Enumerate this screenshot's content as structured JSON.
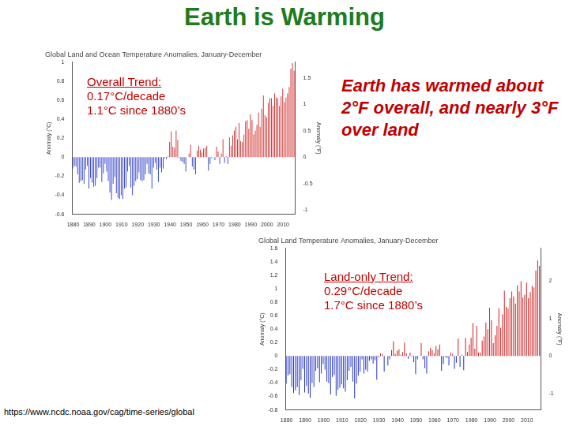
{
  "title": "Earth is Warming",
  "annotation": "Earth has warmed about 2°F overall, and nearly 3°F over land",
  "source": "https://www.ncdc.noaa.gov/cag/time-series/global",
  "chart_data": [
    {
      "type": "bar",
      "title": "Global Land and Ocean Temperature Anomalies, January-December",
      "ylabel": "Anomaly (°C)",
      "y2label": "Anomaly (°F)",
      "annotations": [
        "Overall Trend:",
        "0.17°C/decade",
        "1.1°C since 1880’s"
      ],
      "categories": [
        "1880",
        null,
        null,
        null,
        null,
        null,
        null,
        null,
        null,
        null,
        "1890",
        null,
        null,
        null,
        null,
        null,
        null,
        null,
        null,
        null,
        "1900",
        null,
        null,
        null,
        null,
        null,
        null,
        null,
        null,
        null,
        "1910",
        null,
        null,
        null,
        null,
        null,
        null,
        null,
        null,
        null,
        "1920",
        null,
        null,
        null,
        null,
        null,
        null,
        null,
        null,
        null,
        "1930",
        null,
        null,
        null,
        null,
        null,
        null,
        null,
        null,
        null,
        "1940",
        null,
        null,
        null,
        null,
        null,
        null,
        null,
        null,
        null,
        "1950",
        null,
        null,
        null,
        null,
        null,
        null,
        null,
        null,
        null,
        "1960",
        null,
        null,
        null,
        null,
        null,
        null,
        null,
        null,
        null,
        "1970",
        null,
        null,
        null,
        null,
        null,
        null,
        null,
        null,
        null,
        "1980",
        null,
        null,
        null,
        null,
        null,
        null,
        null,
        null,
        null,
        "1990",
        null,
        null,
        null,
        null,
        null,
        null,
        null,
        null,
        null,
        "2000",
        null,
        null,
        null,
        null,
        null,
        null,
        null,
        null,
        null,
        "2010",
        null,
        null,
        null,
        null,
        null,
        null,
        null
      ],
      "values": [
        -0.12,
        -0.09,
        -0.1,
        -0.18,
        -0.27,
        -0.25,
        -0.24,
        -0.28,
        -0.13,
        -0.09,
        -0.33,
        -0.22,
        -0.27,
        -0.31,
        -0.3,
        -0.22,
        -0.11,
        -0.11,
        -0.26,
        -0.17,
        -0.07,
        -0.15,
        -0.25,
        -0.37,
        -0.45,
        -0.28,
        -0.21,
        -0.38,
        -0.43,
        -0.44,
        -0.4,
        -0.44,
        -0.33,
        -0.32,
        -0.15,
        -0.09,
        -0.32,
        -0.4,
        -0.3,
        -0.25,
        -0.23,
        -0.16,
        -0.24,
        -0.25,
        -0.24,
        -0.18,
        -0.07,
        -0.17,
        -0.18,
        -0.33,
        -0.11,
        -0.06,
        -0.13,
        -0.26,
        -0.11,
        -0.16,
        -0.12,
        -0.01,
        -0.02,
        0.01,
        0.16,
        0.27,
        0.11,
        0.1,
        0.28,
        0.18,
        -0.01,
        -0.04,
        -0.05,
        -0.07,
        -0.15,
        0,
        0.04,
        0.13,
        -0.1,
        -0.13,
        -0.18,
        0.07,
        0.12,
        0.08,
        0.05,
        0.09,
        0.1,
        0.12,
        -0.14,
        -0.07,
        -0.01,
        0,
        -0.03,
        0.11,
        0.06,
        -0.07,
        0.04,
        0.19,
        -0.06,
        0.01,
        -0.07,
        0.21,
        0.12,
        0.23,
        0.28,
        0.32,
        0.19,
        0.36,
        0.17,
        0.16,
        0.24,
        0.38,
        0.39,
        0.3,
        0.45,
        0.39,
        0.24,
        0.28,
        0.34,
        0.47,
        0.32,
        0.51,
        0.65,
        0.44,
        0.42,
        0.57,
        0.62,
        0.62,
        0.54,
        0.67,
        0.63,
        0.62,
        0.54,
        0.64,
        0.72,
        0.58,
        0.63,
        0.67,
        0.74,
        0.93,
        0.99,
        0.91
      ],
      "ylim": [
        -0.6,
        1.0
      ],
      "yticks": [
        -0.6,
        -0.4,
        -0.2,
        0,
        0.2,
        0.4,
        0.6,
        0.8,
        1.0
      ],
      "y2lim": [
        -1.08,
        1.8
      ],
      "y2ticks": [
        -1,
        -0.5,
        0,
        0.5,
        1,
        1.5
      ],
      "grid": false
    },
    {
      "type": "bar",
      "title": "Global Land Temperature Anomalies, January-December",
      "ylabel": "Anomaly (°C)",
      "y2label": "Anomaly (°F)",
      "annotations": [
        "Land-only Trend:",
        "0.29°C/decade",
        "1.7°C since 1880’s"
      ],
      "categories": [
        "1880",
        null,
        null,
        null,
        null,
        null,
        null,
        null,
        null,
        null,
        "1890",
        null,
        null,
        null,
        null,
        null,
        null,
        null,
        null,
        null,
        "1900",
        null,
        null,
        null,
        null,
        null,
        null,
        null,
        null,
        null,
        "1910",
        null,
        null,
        null,
        null,
        null,
        null,
        null,
        null,
        null,
        "1920",
        null,
        null,
        null,
        null,
        null,
        null,
        null,
        null,
        null,
        "1930",
        null,
        null,
        null,
        null,
        null,
        null,
        null,
        null,
        null,
        "1940",
        null,
        null,
        null,
        null,
        null,
        null,
        null,
        null,
        null,
        "1950",
        null,
        null,
        null,
        null,
        null,
        null,
        null,
        null,
        null,
        "1960",
        null,
        null,
        null,
        null,
        null,
        null,
        null,
        null,
        null,
        "1970",
        null,
        null,
        null,
        null,
        null,
        null,
        null,
        null,
        null,
        "1980",
        null,
        null,
        null,
        null,
        null,
        null,
        null,
        null,
        null,
        "1990",
        null,
        null,
        null,
        null,
        null,
        null,
        null,
        null,
        null,
        "2000",
        null,
        null,
        null,
        null,
        null,
        null,
        null,
        null,
        null,
        "2010",
        null,
        null,
        null,
        null,
        null,
        null,
        null
      ],
      "values": [
        -0.41,
        -0.29,
        -0.27,
        -0.46,
        -0.55,
        -0.51,
        -0.46,
        -0.58,
        -0.36,
        -0.19,
        -0.54,
        -0.44,
        -0.56,
        -0.62,
        -0.4,
        -0.46,
        -0.22,
        -0.18,
        -0.39,
        -0.26,
        -0.12,
        -0.2,
        -0.38,
        -0.4,
        -0.57,
        -0.31,
        -0.28,
        -0.59,
        -0.5,
        -0.47,
        -0.42,
        -0.48,
        -0.53,
        -0.36,
        -0.22,
        -0.16,
        -0.38,
        -0.63,
        -0.41,
        -0.29,
        -0.23,
        -0.05,
        -0.26,
        -0.2,
        -0.23,
        -0.07,
        -0.05,
        -0.11,
        -0.06,
        -0.35,
        -0.02,
        0.04,
        0.03,
        -0.23,
        0,
        -0.14,
        -0.05,
        0.09,
        0.22,
        0.03,
        0.08,
        0.1,
        0.02,
        0.06,
        0.2,
        0.04,
        -0.04,
        0.05,
        -0.01,
        -0.09,
        -0.27,
        -0.05,
        0,
        0.19,
        -0.05,
        -0.18,
        -0.26,
        0.07,
        0.12,
        0.09,
        0.04,
        0.15,
        0.1,
        0.17,
        -0.22,
        -0.12,
        -0.01,
        -0.03,
        -0.14,
        0.05,
        0.03,
        -0.19,
        -0.1,
        0.26,
        -0.16,
        0.02,
        -0.21,
        0.27,
        0.06,
        0.17,
        0.27,
        0.49,
        0.11,
        0.45,
        0.05,
        0.05,
        0.23,
        0.29,
        0.5,
        0.4,
        0.72,
        0.53,
        0.19,
        0.31,
        0.45,
        0.71,
        0.42,
        0.62,
        0.97,
        0.73,
        0.71,
        0.86,
        0.96,
        0.89,
        0.78,
        1.05,
        0.96,
        1.11,
        0.87,
        0.91,
        1.09,
        0.86,
        0.95,
        1.04,
        1.02,
        1.27,
        1.42,
        1.34
      ],
      "ylim": [
        -0.8,
        1.6
      ],
      "yticks": [
        -0.8,
        -0.6,
        -0.4,
        -0.2,
        0,
        0.2,
        0.4,
        0.6,
        0.8,
        1.0,
        1.2,
        1.4,
        1.6
      ],
      "y2lim": [
        -1.44,
        2.88
      ],
      "y2ticks": [
        -1,
        0,
        1,
        2
      ],
      "grid": false
    }
  ]
}
